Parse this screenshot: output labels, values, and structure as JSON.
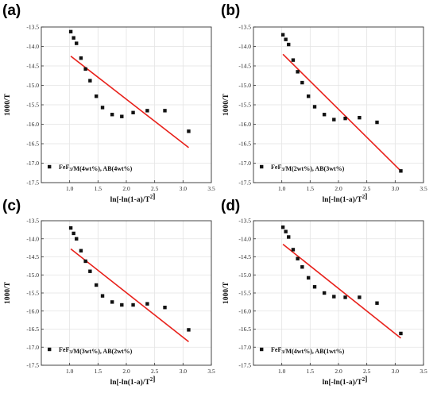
{
  "chart_data": [
    {
      "type": "scatter",
      "panel": "(a)",
      "xlabel": "ln[-ln(1-a)/T²]",
      "ylabel": "1000/T",
      "xlim": [
        0.5,
        3.5
      ],
      "ylim": [
        -17.5,
        -13.5
      ],
      "xticks": [
        "1.0",
        "1.5",
        "2.0",
        "2.5",
        "3.0",
        "3.5"
      ],
      "yticks": [
        "-13.5",
        "-14.0",
        "-14.5",
        "-15.0",
        "-15.5",
        "-16.0",
        "-16.5",
        "-17.0",
        "-17.5"
      ],
      "grid": true,
      "legend": "FeF₃/M(4wt%), AB(4wt%)",
      "legend_position": "bottom-left",
      "points": [
        [
          1.02,
          -13.62
        ],
        [
          1.07,
          -13.78
        ],
        [
          1.12,
          -13.92
        ],
        [
          1.2,
          -14.3
        ],
        [
          1.28,
          -14.58
        ],
        [
          1.36,
          -14.88
        ],
        [
          1.47,
          -15.28
        ],
        [
          1.58,
          -15.57
        ],
        [
          1.75,
          -15.75
        ],
        [
          1.92,
          -15.8
        ],
        [
          2.12,
          -15.7
        ],
        [
          2.37,
          -15.65
        ],
        [
          2.68,
          -15.65
        ],
        [
          3.1,
          -16.18
        ]
      ],
      "fit": [
        [
          1.02,
          -14.25
        ],
        [
          3.1,
          -16.6
        ]
      ]
    },
    {
      "type": "scatter",
      "panel": "(b)",
      "xlabel": "ln[-ln(1-a)/T²]",
      "ylabel": "1000/T",
      "xlim": [
        0.5,
        3.5
      ],
      "ylim": [
        -17.5,
        -13.5
      ],
      "xticks": [
        "1.0",
        "1.5",
        "2.0",
        "2.5",
        "3.0",
        "3.5"
      ],
      "yticks": [
        "-13.5",
        "-14.0",
        "-14.5",
        "-15.0",
        "-15.5",
        "-16.0",
        "-16.5",
        "-17.0",
        "-17.5"
      ],
      "grid": true,
      "legend": "FeF₃/M(2wt%), AB(3wt%)",
      "legend_position": "bottom-left",
      "points": [
        [
          1.02,
          -13.7
        ],
        [
          1.07,
          -13.82
        ],
        [
          1.12,
          -13.95
        ],
        [
          1.2,
          -14.35
        ],
        [
          1.28,
          -14.65
        ],
        [
          1.36,
          -14.93
        ],
        [
          1.47,
          -15.28
        ],
        [
          1.58,
          -15.55
        ],
        [
          1.75,
          -15.75
        ],
        [
          1.92,
          -15.88
        ],
        [
          2.12,
          -15.85
        ],
        [
          2.37,
          -15.83
        ],
        [
          2.68,
          -15.95
        ],
        [
          3.1,
          -17.2
        ]
      ],
      "fit": [
        [
          1.02,
          -14.2
        ],
        [
          3.1,
          -17.2
        ]
      ]
    },
    {
      "type": "scatter",
      "panel": "(c)",
      "xlabel": "ln[-ln(1-a)/T²]",
      "ylabel": "1000/T",
      "xlim": [
        0.5,
        3.5
      ],
      "ylim": [
        -17.5,
        -13.5
      ],
      "xticks": [
        "1.0",
        "1.5",
        "2.0",
        "2.5",
        "3.0",
        "3.5"
      ],
      "yticks": [
        "-13.5",
        "-14.0",
        "-14.5",
        "-15.0",
        "-15.5",
        "-16.0",
        "-16.5",
        "-17.0",
        "-17.5"
      ],
      "grid": true,
      "legend": "FeF₃/M(3wt%), AB(2wt%)",
      "legend_position": "bottom-left",
      "points": [
        [
          1.02,
          -13.7
        ],
        [
          1.07,
          -13.85
        ],
        [
          1.12,
          -14.0
        ],
        [
          1.2,
          -14.33
        ],
        [
          1.28,
          -14.62
        ],
        [
          1.36,
          -14.9
        ],
        [
          1.47,
          -15.28
        ],
        [
          1.58,
          -15.58
        ],
        [
          1.75,
          -15.75
        ],
        [
          1.92,
          -15.83
        ],
        [
          2.12,
          -15.83
        ],
        [
          2.37,
          -15.8
        ],
        [
          2.68,
          -15.9
        ],
        [
          3.1,
          -16.52
        ]
      ],
      "fit": [
        [
          1.02,
          -14.28
        ],
        [
          3.1,
          -16.85
        ]
      ]
    },
    {
      "type": "scatter",
      "panel": "(d)",
      "xlabel": "ln[-ln(1-a)/T²]",
      "ylabel": "1000/T",
      "xlim": [
        0.5,
        3.5
      ],
      "ylim": [
        -17.5,
        -13.5
      ],
      "xticks": [
        "1.0",
        "1.5",
        "2.0",
        "2.5",
        "3.0",
        "3.5"
      ],
      "yticks": [
        "-13.5",
        "-14.0",
        "-14.5",
        "-15.0",
        "-15.5",
        "-16.0",
        "-16.5",
        "-17.0",
        "-17.5"
      ],
      "grid": true,
      "legend": "FeF₃/M(4wt%), AB(1wt%)",
      "legend_position": "bottom-left",
      "points": [
        [
          1.02,
          -13.68
        ],
        [
          1.07,
          -13.8
        ],
        [
          1.12,
          -13.95
        ],
        [
          1.2,
          -14.3
        ],
        [
          1.28,
          -14.55
        ],
        [
          1.36,
          -14.78
        ],
        [
          1.47,
          -15.08
        ],
        [
          1.58,
          -15.33
        ],
        [
          1.75,
          -15.5
        ],
        [
          1.92,
          -15.6
        ],
        [
          2.12,
          -15.62
        ],
        [
          2.37,
          -15.62
        ],
        [
          2.68,
          -15.78
        ],
        [
          3.1,
          -16.62
        ]
      ],
      "fit": [
        [
          1.02,
          -14.15
        ],
        [
          3.1,
          -16.75
        ]
      ]
    }
  ],
  "colors": {
    "fit_line": "#e8201a",
    "points": "#111111",
    "grid": "#e3e3e3"
  }
}
